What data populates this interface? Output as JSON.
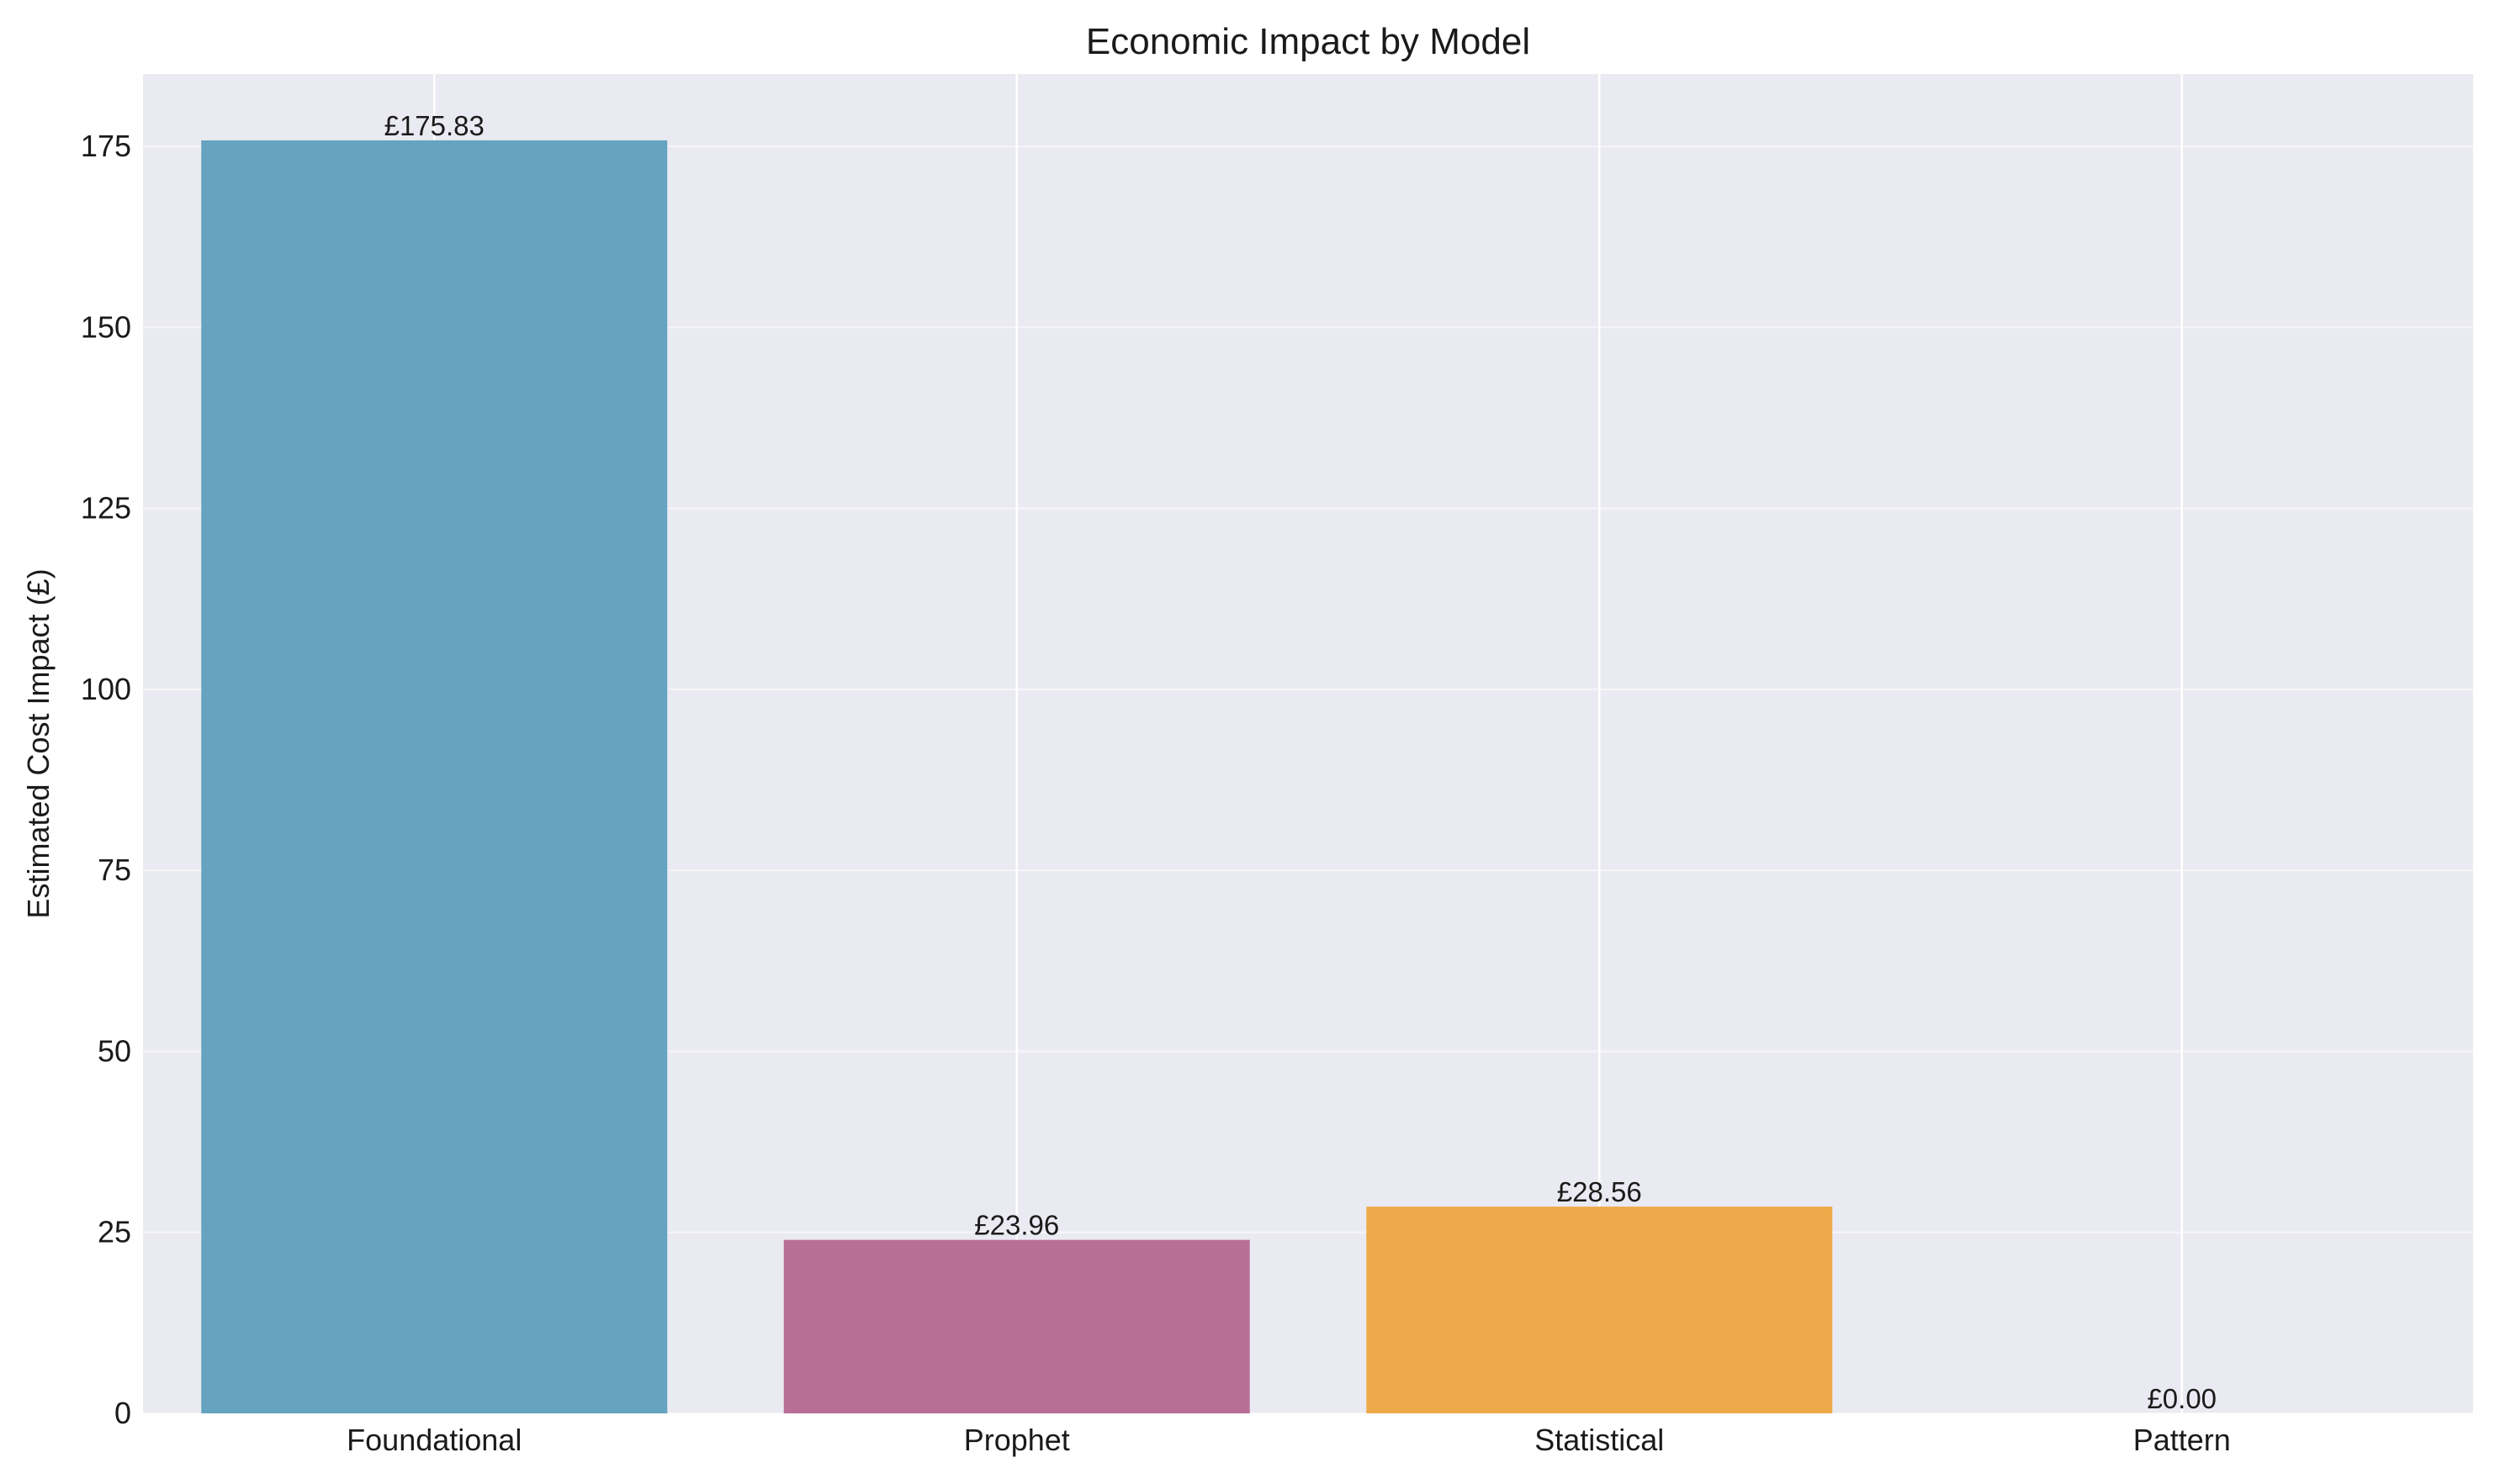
{
  "chart_data": {
    "type": "bar",
    "title": "Economic Impact by Model",
    "xlabel": "",
    "ylabel": "Estimated Cost Impact (£)",
    "categories": [
      "Foundational",
      "Prophet",
      "Statistical",
      "Pattern"
    ],
    "values": [
      175.83,
      23.96,
      28.56,
      0.0
    ],
    "value_labels": [
      "£175.83",
      "£23.96",
      "£28.56",
      "£0.00"
    ],
    "bar_colors": [
      "#66a3c1",
      "#b86f96",
      "#eeaa4a",
      "#c5c5c5"
    ],
    "ylim": [
      0,
      185
    ],
    "yticks": [
      0,
      25,
      50,
      75,
      100,
      125,
      150,
      175
    ],
    "ytick_labels": [
      "0",
      "25",
      "50",
      "75",
      "100",
      "125",
      "150",
      "175"
    ],
    "grid": true,
    "background_color": "#eaeaf2",
    "grid_color": "#ffffff"
  }
}
